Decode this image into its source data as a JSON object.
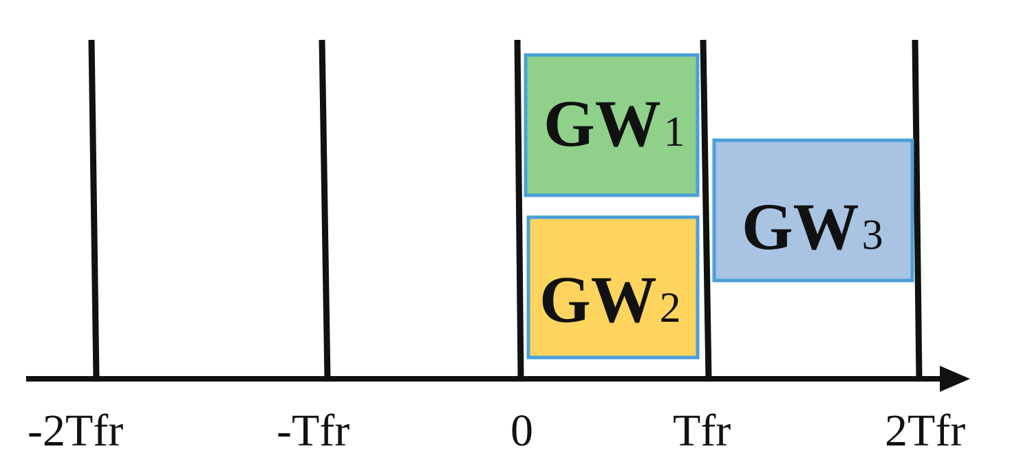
{
  "axis": {
    "ticks": [
      "-2Tfr",
      "-Tfr",
      "0",
      "Tfr",
      "2Tfr"
    ]
  },
  "windows": [
    {
      "label": "GW",
      "subscript": "1",
      "fill": "#8fd18a",
      "border": "#4a9fd8"
    },
    {
      "label": "GW",
      "subscript": "2",
      "fill": "#ffd45e",
      "border": "#4a9fd8"
    },
    {
      "label": "GW",
      "subscript": "3",
      "fill": "#a9c3e3",
      "border": "#4a9fd8"
    }
  ]
}
